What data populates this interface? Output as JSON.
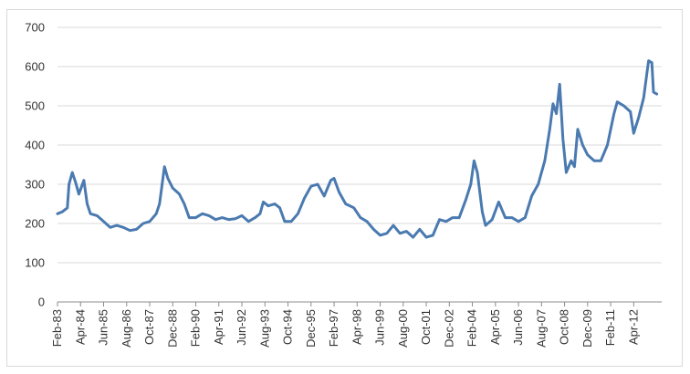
{
  "chart_data": {
    "type": "line",
    "title": "",
    "xlabel": "",
    "ylabel": "",
    "ylim": [
      0,
      700
    ],
    "yticks": [
      0,
      100,
      200,
      300,
      400,
      500,
      600,
      700
    ],
    "x_tick_labels": [
      "Feb-83",
      "Apr-84",
      "Jun-85",
      "Aug-86",
      "Oct-87",
      "Dec-88",
      "Feb-90",
      "Apr-91",
      "Jun-92",
      "Aug-93",
      "Oct-94",
      "Dec-95",
      "Feb-97",
      "Apr-98",
      "Jun-99",
      "Aug-00",
      "Oct-01",
      "Dec-02",
      "Feb-04",
      "Apr-05",
      "Jun-06",
      "Aug-07",
      "Oct-08",
      "Dec-09",
      "Feb-11",
      "Apr-12"
    ],
    "grid": true,
    "legend": false,
    "line_color": "#4a7ab0",
    "series": [
      {
        "name": "",
        "points": [
          [
            "Feb-83",
            225
          ],
          [
            "May-83",
            230
          ],
          [
            "Aug-83",
            240
          ],
          [
            "Sep-83",
            300
          ],
          [
            "Nov-83",
            330
          ],
          [
            "Jan-84",
            305
          ],
          [
            "Mar-84",
            275
          ],
          [
            "Jun-84",
            310
          ],
          [
            "Aug-84",
            250
          ],
          [
            "Oct-84",
            225
          ],
          [
            "Feb-85",
            220
          ],
          [
            "Jun-85",
            205
          ],
          [
            "Oct-85",
            190
          ],
          [
            "Feb-86",
            195
          ],
          [
            "Jun-86",
            190
          ],
          [
            "Oct-86",
            182
          ],
          [
            "Feb-87",
            185
          ],
          [
            "Jun-87",
            200
          ],
          [
            "Oct-87",
            205
          ],
          [
            "Feb-88",
            225
          ],
          [
            "Apr-88",
            250
          ],
          [
            "Jul-88",
            345
          ],
          [
            "Sep-88",
            315
          ],
          [
            "Dec-88",
            290
          ],
          [
            "Apr-89",
            275
          ],
          [
            "Jul-89",
            250
          ],
          [
            "Oct-89",
            215
          ],
          [
            "Feb-90",
            215
          ],
          [
            "Jun-90",
            225
          ],
          [
            "Oct-90",
            220
          ],
          [
            "Feb-91",
            210
          ],
          [
            "Jun-91",
            215
          ],
          [
            "Oct-91",
            210
          ],
          [
            "Feb-92",
            212
          ],
          [
            "Jun-92",
            220
          ],
          [
            "Oct-92",
            205
          ],
          [
            "Feb-93",
            215
          ],
          [
            "May-93",
            225
          ],
          [
            "Jul-93",
            255
          ],
          [
            "Oct-93",
            245
          ],
          [
            "Feb-94",
            250
          ],
          [
            "May-94",
            240
          ],
          [
            "Aug-94",
            205
          ],
          [
            "Dec-94",
            205
          ],
          [
            "Apr-95",
            225
          ],
          [
            "Aug-95",
            265
          ],
          [
            "Dec-95",
            295
          ],
          [
            "Apr-96",
            300
          ],
          [
            "Aug-96",
            270
          ],
          [
            "Dec-96",
            310
          ],
          [
            "Feb-97",
            315
          ],
          [
            "May-97",
            280
          ],
          [
            "Sep-97",
            250
          ],
          [
            "Feb-98",
            240
          ],
          [
            "Jun-98",
            215
          ],
          [
            "Oct-98",
            205
          ],
          [
            "Feb-99",
            185
          ],
          [
            "Jun-99",
            170
          ],
          [
            "Oct-99",
            175
          ],
          [
            "Feb-00",
            195
          ],
          [
            "Jun-00",
            175
          ],
          [
            "Oct-00",
            180
          ],
          [
            "Feb-01",
            165
          ],
          [
            "Jun-01",
            185
          ],
          [
            "Oct-01",
            165
          ],
          [
            "Feb-02",
            170
          ],
          [
            "Jun-02",
            210
          ],
          [
            "Oct-02",
            205
          ],
          [
            "Feb-03",
            215
          ],
          [
            "Jun-03",
            215
          ],
          [
            "Oct-03",
            260
          ],
          [
            "Jan-04",
            300
          ],
          [
            "Mar-04",
            360
          ],
          [
            "May-04",
            330
          ],
          [
            "Aug-04",
            230
          ],
          [
            "Oct-04",
            195
          ],
          [
            "Feb-05",
            210
          ],
          [
            "Jun-05",
            255
          ],
          [
            "Oct-05",
            215
          ],
          [
            "Feb-06",
            215
          ],
          [
            "Jun-06",
            205
          ],
          [
            "Oct-06",
            215
          ],
          [
            "Feb-07",
            270
          ],
          [
            "Jun-07",
            300
          ],
          [
            "Oct-07",
            360
          ],
          [
            "Jan-08",
            440
          ],
          [
            "Mar-08",
            505
          ],
          [
            "May-08",
            480
          ],
          [
            "Jul-08",
            555
          ],
          [
            "Sep-08",
            415
          ],
          [
            "Nov-08",
            330
          ],
          [
            "Feb-09",
            360
          ],
          [
            "Apr-09",
            345
          ],
          [
            "Jun-09",
            440
          ],
          [
            "Sep-09",
            400
          ],
          [
            "Dec-09",
            375
          ],
          [
            "Apr-10",
            360
          ],
          [
            "Aug-10",
            360
          ],
          [
            "Dec-10",
            400
          ],
          [
            "Apr-11",
            480
          ],
          [
            "Jun-11",
            510
          ],
          [
            "Oct-11",
            500
          ],
          [
            "Feb-12",
            485
          ],
          [
            "Apr-12",
            430
          ],
          [
            "Jul-12",
            470
          ],
          [
            "Oct-12",
            520
          ],
          [
            "Jan-13",
            615
          ],
          [
            "Mar-13",
            610
          ],
          [
            "Apr-13",
            535
          ],
          [
            "Jun-13",
            530
          ]
        ]
      }
    ]
  }
}
